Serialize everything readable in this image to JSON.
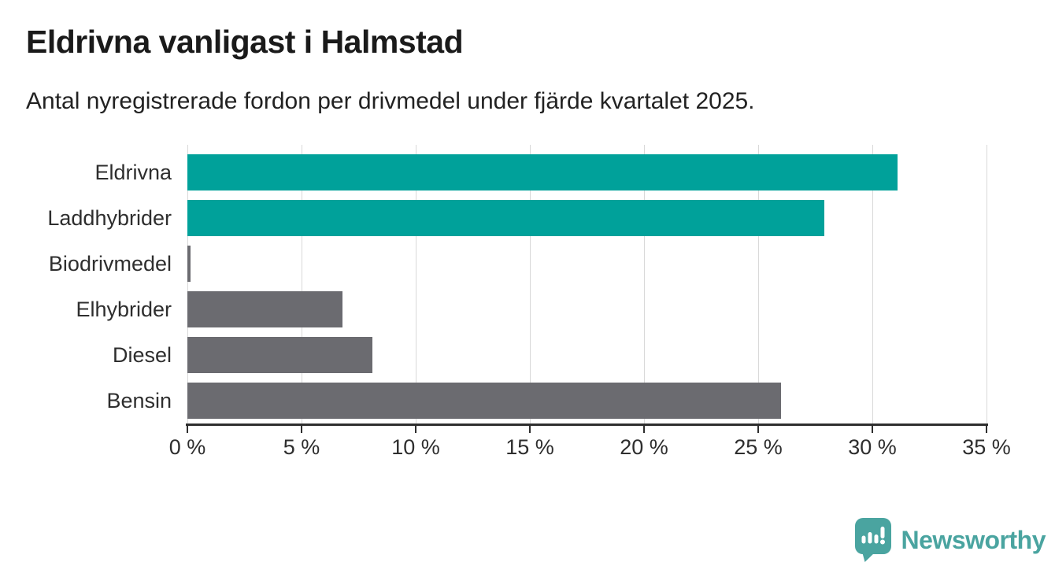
{
  "header": {
    "title": "Eldrivna vanligast i Halmstad",
    "subtitle": "Antal nyregistrerade fordon per drivmedel under fjärde kvartalet 2025."
  },
  "chart_data": {
    "type": "bar",
    "orientation": "horizontal",
    "title": "Eldrivna vanligast i Halmstad",
    "subtitle": "Antal nyregistrerade fordon per drivmedel under fjärde kvartalet 2025.",
    "categories": [
      "Eldrivna",
      "Laddhybrider",
      "Biodrivmedel",
      "Elhybrider",
      "Diesel",
      "Bensin"
    ],
    "values": [
      31.1,
      27.9,
      0.15,
      6.8,
      8.1,
      26.0
    ],
    "unit": "%",
    "xlim": [
      0,
      35
    ],
    "x_tick_values": [
      0,
      5,
      10,
      15,
      20,
      25,
      30,
      35
    ],
    "x_tick_labels": [
      "0 %",
      "5 %",
      "10 %",
      "15 %",
      "20 %",
      "25 %",
      "30 %",
      "35 %"
    ],
    "grid": true,
    "legend": "none",
    "colors": {
      "highlight": "#00a19a",
      "default": "#6b6b70",
      "bar_colors": [
        "#00a19a",
        "#00a19a",
        "#6b6b70",
        "#6b6b70",
        "#6b6b70",
        "#6b6b70"
      ],
      "gridline": "#d9d9d9",
      "axis": "#2e2e2e",
      "text": "#2e2e2e"
    }
  },
  "footer": {
    "brand_name": "Newsworthy",
    "brand_color": "#4aa4a0",
    "logo_icon": "newsworthy-speech-bubble-barchart-icon"
  }
}
